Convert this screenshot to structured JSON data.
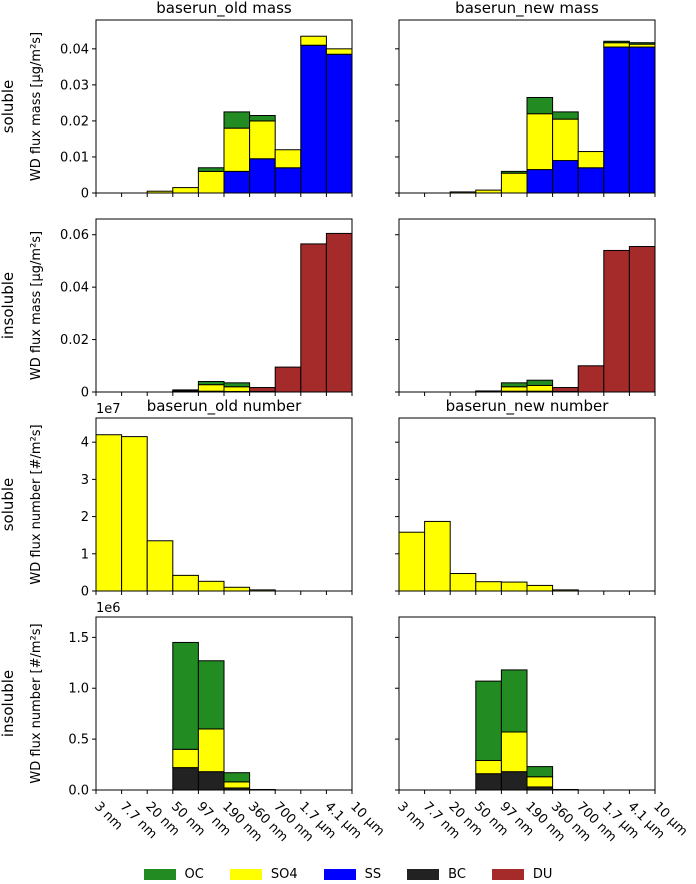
{
  "colors": {
    "OC": "#228b22",
    "SO4": "#ffff00",
    "SS": "#0000ff",
    "BC": "#222222",
    "DU": "#a52a2a"
  },
  "legend": [
    {
      "key": "OC",
      "label": "OC"
    },
    {
      "key": "SO4",
      "label": "SO4"
    },
    {
      "key": "SS",
      "label": "SS"
    },
    {
      "key": "BC",
      "label": "BC"
    },
    {
      "key": "DU",
      "label": "DU"
    }
  ],
  "row_labels": [
    "soluble",
    "insoluble",
    "soluble",
    "insoluble"
  ],
  "bin_edges_labels": [
    "3 nm",
    "7.7 nm",
    "20 nm",
    "50 nm",
    "97 nm",
    "190 nm",
    "360 nm",
    "700 nm",
    "1.7 µm",
    "4.1 µm",
    "10 µm"
  ],
  "chart_data": [
    {
      "type": "bar",
      "title": "baserun_old mass",
      "ylabel": "WD flux mass [µg/m²s]",
      "ylim": [
        0,
        0.048
      ],
      "yticks": [
        0,
        0.01,
        0.02,
        0.03,
        0.04
      ],
      "ytick_labels": [
        "0",
        "0.01",
        "0.02",
        "0.03",
        "0.04"
      ],
      "exponent_label": "",
      "series": [
        {
          "name": "SS",
          "values": [
            0,
            0,
            0,
            0,
            0,
            0.006,
            0.0095,
            0.007,
            0.041,
            0.0385
          ]
        },
        {
          "name": "SO4",
          "values": [
            0,
            0,
            0.0005,
            0.0015,
            0.006,
            0.012,
            0.0105,
            0.005,
            0.0025,
            0.0015
          ]
        },
        {
          "name": "OC",
          "values": [
            0,
            0,
            0,
            0,
            0.001,
            0.0045,
            0.0015,
            0,
            0,
            0
          ]
        }
      ]
    },
    {
      "type": "bar",
      "title": "baserun_new mass",
      "ylabel": "",
      "ylim": [
        0,
        0.048
      ],
      "yticks": [
        0,
        0.01,
        0.02,
        0.03,
        0.04
      ],
      "ytick_labels": [
        "",
        "",
        "",
        "",
        ""
      ],
      "exponent_label": "",
      "series": [
        {
          "name": "SS",
          "values": [
            0,
            0,
            0,
            0,
            0,
            0.0065,
            0.009,
            0.007,
            0.0405,
            0.0405
          ]
        },
        {
          "name": "SO4",
          "values": [
            0,
            0,
            0.0003,
            0.0008,
            0.0055,
            0.0155,
            0.0115,
            0.0045,
            0.0012,
            0.0008
          ]
        },
        {
          "name": "OC",
          "values": [
            0,
            0,
            0,
            0,
            0.0005,
            0.0045,
            0.002,
            0,
            0.0004,
            0.0004
          ]
        }
      ]
    },
    {
      "type": "bar",
      "title": "",
      "ylabel": "WD flux mass [µg/m²s]",
      "ylim": [
        0,
        0.066
      ],
      "yticks": [
        0,
        0.02,
        0.04,
        0.06
      ],
      "ytick_labels": [
        "0",
        "0.02",
        "0.04",
        "0.06"
      ],
      "exponent_label": "",
      "series": [
        {
          "name": "BC",
          "values": [
            0,
            0,
            0,
            0.0002,
            0.0003,
            0.0002,
            0,
            0,
            0,
            0
          ]
        },
        {
          "name": "SO4",
          "values": [
            0,
            0,
            0,
            0.0003,
            0.0025,
            0.0018,
            0.0002,
            0,
            0,
            0
          ]
        },
        {
          "name": "OC",
          "values": [
            0,
            0,
            0,
            0.0003,
            0.0012,
            0.0015,
            0,
            0,
            0,
            0
          ]
        },
        {
          "name": "DU",
          "values": [
            0,
            0,
            0,
            0,
            0,
            0,
            0.0015,
            0.0095,
            0.0565,
            0.0605
          ]
        }
      ]
    },
    {
      "type": "bar",
      "title": "",
      "ylabel": "",
      "ylim": [
        0,
        0.066
      ],
      "yticks": [
        0,
        0.02,
        0.04,
        0.06
      ],
      "ytick_labels": [
        "",
        "",
        "",
        ""
      ],
      "exponent_label": "",
      "series": [
        {
          "name": "BC",
          "values": [
            0,
            0,
            0,
            0.0001,
            0.0003,
            0.0003,
            0,
            0,
            0,
            0
          ]
        },
        {
          "name": "SO4",
          "values": [
            0,
            0,
            0,
            0.0002,
            0.0017,
            0.0022,
            0.0002,
            0,
            0,
            0
          ]
        },
        {
          "name": "OC",
          "values": [
            0,
            0,
            0,
            0.0001,
            0.0015,
            0.002,
            0,
            0,
            0,
            0
          ]
        },
        {
          "name": "DU",
          "values": [
            0,
            0,
            0,
            0,
            0,
            0,
            0.0015,
            0.01,
            0.054,
            0.0555
          ]
        }
      ]
    },
    {
      "type": "bar",
      "title": "baserun_old number",
      "ylabel": "WD flux number [#/m²s]",
      "ylim": [
        0,
        46500000.0
      ],
      "yticks": [
        0,
        10000000.0,
        20000000.0,
        30000000.0,
        40000000.0
      ],
      "ytick_labels": [
        "0",
        "1",
        "2",
        "3",
        "4"
      ],
      "exponent_label": "1e7",
      "series": [
        {
          "name": "SO4",
          "values": [
            42000000.0,
            41500000.0,
            13500000.0,
            4200000.0,
            2600000.0,
            1000000.0,
            300000.0,
            0,
            0,
            0
          ]
        }
      ]
    },
    {
      "type": "bar",
      "title": "baserun_new number",
      "ylabel": "",
      "ylim": [
        0,
        46500000.0
      ],
      "yticks": [
        0,
        10000000.0,
        20000000.0,
        30000000.0,
        40000000.0
      ],
      "ytick_labels": [
        "",
        "",
        "",
        "",
        ""
      ],
      "exponent_label": "",
      "series": [
        {
          "name": "SO4",
          "values": [
            15800000.0,
            18700000.0,
            4700000.0,
            2500000.0,
            2400000.0,
            1500000.0,
            300000.0,
            0,
            0,
            0
          ]
        }
      ]
    },
    {
      "type": "bar",
      "title": "",
      "ylabel": "WD flux number [#/m²s]",
      "ylim": [
        0,
        1700000.0
      ],
      "yticks": [
        0,
        500000.0,
        1000000.0,
        1500000.0
      ],
      "ytick_labels": [
        "0.0",
        "0.5",
        "1.0",
        "1.5"
      ],
      "exponent_label": "1e6",
      "series": [
        {
          "name": "BC",
          "values": [
            0,
            0,
            0,
            220000.0,
            180000.0,
            20000.0,
            5000.0,
            0,
            0,
            0
          ]
        },
        {
          "name": "SO4",
          "values": [
            0,
            0,
            0,
            180000.0,
            420000.0,
            60000.0,
            0,
            0,
            0,
            0
          ]
        },
        {
          "name": "OC",
          "values": [
            0,
            0,
            0,
            1050000.0,
            670000.0,
            90000.0,
            0,
            0,
            0,
            0
          ]
        }
      ]
    },
    {
      "type": "bar",
      "title": "",
      "ylabel": "",
      "ylim": [
        0,
        1700000.0
      ],
      "yticks": [
        0,
        500000.0,
        1000000.0,
        1500000.0
      ],
      "ytick_labels": [
        "",
        "",
        "",
        ""
      ],
      "exponent_label": "",
      "series": [
        {
          "name": "BC",
          "values": [
            0,
            0,
            0,
            160000.0,
            180000.0,
            30000.0,
            5000.0,
            0,
            0,
            0
          ]
        },
        {
          "name": "SO4",
          "values": [
            0,
            0,
            0,
            130000.0,
            390000.0,
            100000.0,
            0,
            0,
            0,
            0
          ]
        },
        {
          "name": "OC",
          "values": [
            0,
            0,
            0,
            780000.0,
            610000.0,
            100000.0,
            0,
            0,
            0,
            0
          ]
        }
      ]
    }
  ]
}
